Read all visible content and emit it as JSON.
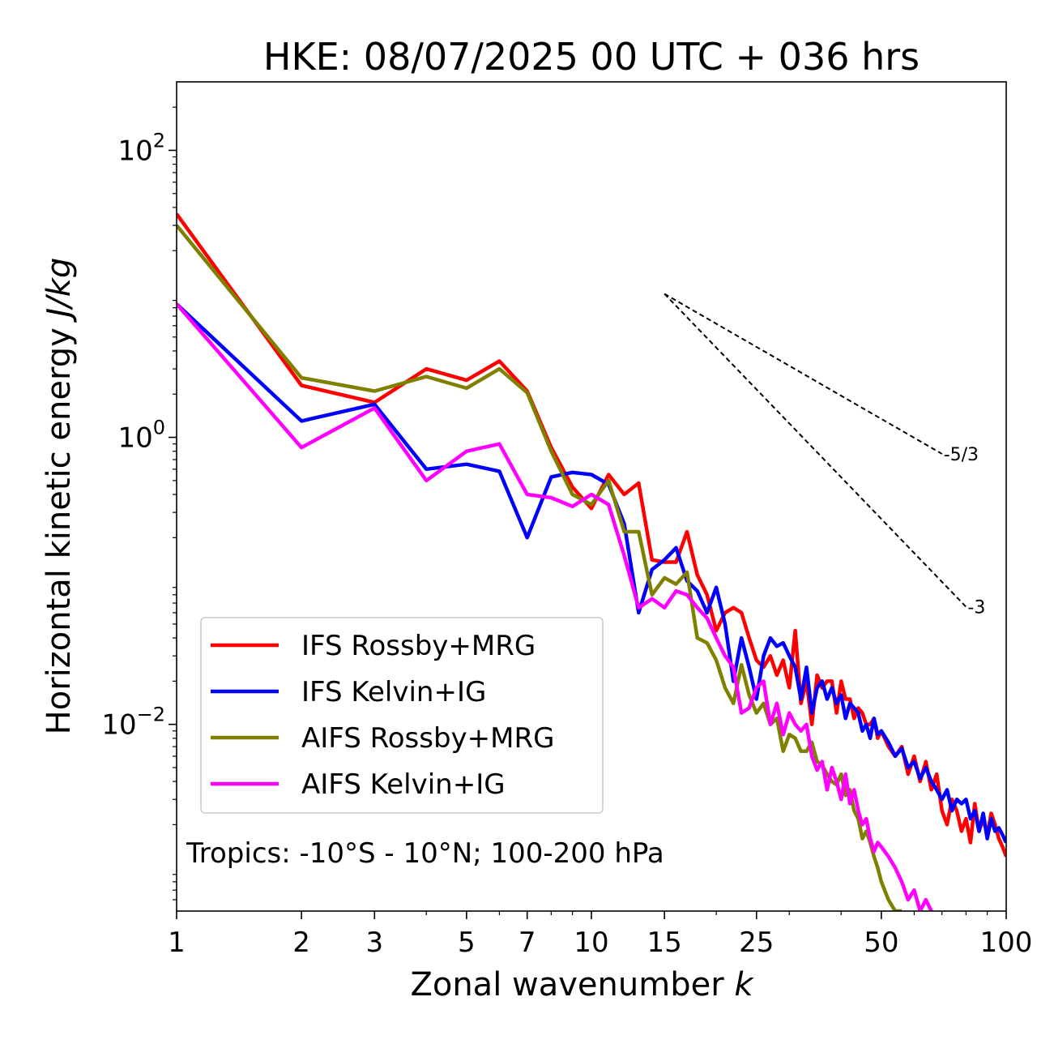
{
  "chart_data": {
    "type": "line",
    "title": "HKE: 08/07/2025 00 UTC + 036 hrs",
    "xlabel": "Zonal wavenumber",
    "xlabel_var": "k",
    "ylabel": "Horizontal kinetic energy",
    "ylabel_unit": "J/kg",
    "x_scale": "log",
    "y_scale": "log",
    "xlim": [
      1,
      100
    ],
    "ylim": [
      0.0005,
      300
    ],
    "x_ticks": [
      1,
      2,
      3,
      5,
      7,
      10,
      15,
      25,
      50,
      100
    ],
    "x_tick_labels": [
      "1",
      "2",
      "3",
      "5",
      "7",
      "10",
      "15",
      "25",
      "50",
      "100"
    ],
    "y_ticks": [
      0.01,
      1,
      100
    ],
    "y_tick_labels": [
      {
        "base": "10",
        "exp": "−2"
      },
      {
        "base": "10",
        "exp": "0"
      },
      {
        "base": "10",
        "exp": "2"
      }
    ],
    "legend_position": "lower-left",
    "annotation": "Tropics: -10°S - 10°N; 100-200 hPa",
    "reference_lines": [
      {
        "label": "-5/3",
        "slope": -1.6667,
        "x": [
          15,
          70
        ],
        "y_start": 10
      },
      {
        "label": "-3",
        "slope": -3,
        "x": [
          15,
          80
        ],
        "y_start": 10
      }
    ],
    "series": [
      {
        "name": "IFS Rossby+MRG",
        "color": "#ff0000",
        "x": [
          1,
          2,
          3,
          4,
          5,
          6,
          7,
          8,
          9,
          10,
          11,
          12,
          13,
          14,
          15,
          16,
          17,
          18,
          19,
          20,
          21,
          22,
          23,
          24,
          25,
          26,
          27,
          28,
          29,
          30,
          31,
          32,
          33,
          34,
          35,
          36,
          37,
          38,
          39,
          40,
          41,
          42,
          43,
          44,
          45,
          46,
          47,
          48,
          49,
          50,
          52,
          54,
          56,
          58,
          60,
          62,
          64,
          66,
          68,
          70,
          72,
          74,
          76,
          78,
          80,
          82,
          84,
          86,
          88,
          90,
          92,
          94,
          96,
          98,
          100
        ],
        "y": [
          36,
          2.3,
          1.75,
          3.0,
          2.5,
          3.4,
          2.1,
          0.85,
          0.45,
          0.32,
          0.55,
          0.4,
          0.48,
          0.14,
          0.135,
          0.135,
          0.22,
          0.11,
          0.08,
          0.045,
          0.06,
          0.065,
          0.06,
          0.04,
          0.028,
          0.025,
          0.03,
          0.022,
          0.028,
          0.018,
          0.045,
          0.014,
          0.02,
          0.01,
          0.022,
          0.018,
          0.02,
          0.02,
          0.012,
          0.02,
          0.015,
          0.015,
          0.011,
          0.013,
          0.012,
          0.01,
          0.01,
          0.011,
          0.008,
          0.009,
          0.007,
          0.006,
          0.007,
          0.0045,
          0.006,
          0.004,
          0.0055,
          0.0035,
          0.0045,
          0.0025,
          0.002,
          0.003,
          0.0025,
          0.0018,
          0.0022,
          0.0015,
          0.0028,
          0.0018,
          0.0022,
          0.0017,
          0.0024,
          0.002,
          0.0016,
          0.0014,
          0.0012
        ]
      },
      {
        "name": "IFS Kelvin+IG",
        "color": "#0000ff",
        "x": [
          1,
          2,
          3,
          4,
          5,
          6,
          7,
          8,
          9,
          10,
          11,
          12,
          13,
          14,
          15,
          16,
          17,
          18,
          19,
          20,
          21,
          22,
          23,
          24,
          25,
          26,
          27,
          28,
          29,
          30,
          31,
          32,
          33,
          34,
          35,
          36,
          37,
          38,
          39,
          40,
          41,
          42,
          43,
          44,
          45,
          46,
          47,
          48,
          49,
          50,
          52,
          54,
          56,
          58,
          60,
          62,
          64,
          66,
          68,
          70,
          72,
          74,
          76,
          78,
          80,
          82,
          84,
          86,
          88,
          90,
          92,
          94,
          96,
          98,
          100
        ],
        "y": [
          8.5,
          1.3,
          1.7,
          0.6,
          0.65,
          0.58,
          0.2,
          0.53,
          0.57,
          0.55,
          0.47,
          0.25,
          0.06,
          0.12,
          0.14,
          0.17,
          0.1,
          0.085,
          0.06,
          0.09,
          0.05,
          0.02,
          0.04,
          0.025,
          0.015,
          0.03,
          0.04,
          0.035,
          0.037,
          0.03,
          0.025,
          0.015,
          0.025,
          0.012,
          0.018,
          0.02,
          0.015,
          0.018,
          0.014,
          0.016,
          0.011,
          0.014,
          0.013,
          0.012,
          0.009,
          0.01,
          0.008,
          0.011,
          0.0085,
          0.009,
          0.0075,
          0.006,
          0.0068,
          0.005,
          0.0055,
          0.0042,
          0.005,
          0.004,
          0.0035,
          0.003,
          0.0035,
          0.0025,
          0.003,
          0.0028,
          0.003,
          0.0022,
          0.0025,
          0.0018,
          0.0024,
          0.0016,
          0.0022,
          0.0018,
          0.0019,
          0.0017,
          0.0015
        ]
      },
      {
        "name": "AIFS Rossby+MRG",
        "color": "#808000",
        "x": [
          1,
          2,
          3,
          4,
          5,
          6,
          7,
          8,
          9,
          10,
          11,
          12,
          13,
          14,
          15,
          16,
          17,
          18,
          19,
          20,
          21,
          22,
          23,
          24,
          25,
          26,
          27,
          28,
          29,
          30,
          31,
          32,
          33,
          34,
          35,
          36,
          37,
          38,
          39,
          40,
          41,
          42,
          43,
          44,
          45,
          46,
          47,
          48,
          49,
          50,
          52,
          54,
          56
        ],
        "y": [
          30,
          2.6,
          2.1,
          2.65,
          2.2,
          3.0,
          2.05,
          0.8,
          0.4,
          0.34,
          0.5,
          0.22,
          0.22,
          0.08,
          0.105,
          0.095,
          0.115,
          0.04,
          0.037,
          0.028,
          0.018,
          0.014,
          0.026,
          0.016,
          0.012,
          0.014,
          0.01,
          0.011,
          0.0065,
          0.0085,
          0.008,
          0.0065,
          0.0065,
          0.0075,
          0.0055,
          0.0052,
          0.0045,
          0.004,
          0.0038,
          0.0045,
          0.0032,
          0.0035,
          0.0025,
          0.0022,
          0.0016,
          0.0018,
          0.0015,
          0.0012,
          0.001,
          0.0008,
          0.0006,
          0.0005,
          0.0005
        ]
      },
      {
        "name": "AIFS Kelvin+IG",
        "color": "#ff00ff",
        "x": [
          1,
          2,
          3,
          4,
          5,
          6,
          7,
          8,
          9,
          10,
          11,
          12,
          13,
          14,
          15,
          16,
          17,
          18,
          19,
          20,
          21,
          22,
          23,
          24,
          25,
          26,
          27,
          28,
          29,
          30,
          31,
          32,
          33,
          34,
          35,
          36,
          37,
          38,
          39,
          40,
          41,
          42,
          43,
          44,
          45,
          46,
          47,
          48,
          49,
          50,
          52,
          54,
          56,
          58,
          60,
          62,
          64,
          66
        ],
        "y": [
          8.5,
          0.85,
          1.6,
          0.5,
          0.8,
          0.9,
          0.4,
          0.38,
          0.33,
          0.4,
          0.34,
          0.15,
          0.065,
          0.075,
          0.065,
          0.085,
          0.08,
          0.065,
          0.055,
          0.04,
          0.03,
          0.025,
          0.012,
          0.013,
          0.018,
          0.02,
          0.01,
          0.014,
          0.0085,
          0.012,
          0.01,
          0.009,
          0.01,
          0.006,
          0.0048,
          0.0055,
          0.0035,
          0.005,
          0.004,
          0.003,
          0.0045,
          0.0028,
          0.0035,
          0.0025,
          0.002,
          0.0022,
          0.0016,
          0.0013,
          0.0015,
          0.0014,
          0.0012,
          0.001,
          0.0008,
          0.0006,
          0.0007,
          0.0005,
          0.0006,
          0.0005
        ]
      }
    ]
  }
}
